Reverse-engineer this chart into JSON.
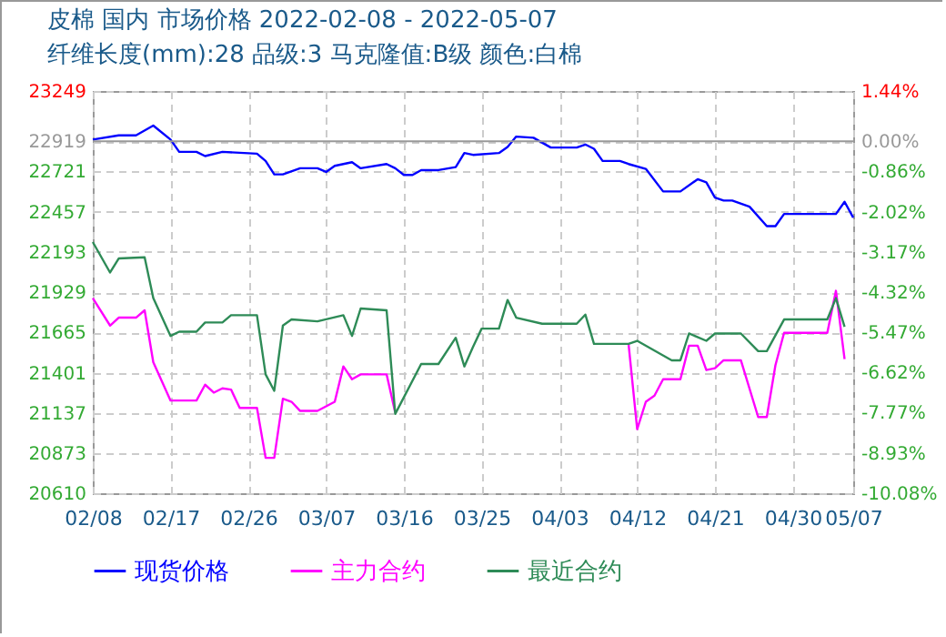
{
  "chart_data": {
    "type": "line",
    "title": "皮棉  国内  市场价格  2022-02-08 - 2022-05-07",
    "subtitle": "纤维长度(mm):28 品级:3 马克隆值:B级 颜色:白棉",
    "series": [
      {
        "name": "现货价格",
        "color": "#0000ff",
        "x": [
          "2022-02-08",
          "2022-02-11",
          "2022-02-13",
          "2022-02-15",
          "2022-02-17",
          "2022-02-18",
          "2022-02-20",
          "2022-02-21",
          "2022-02-23",
          "2022-02-27",
          "2022-02-28",
          "2022-03-01",
          "2022-03-02",
          "2022-03-04",
          "2022-03-06",
          "2022-03-07",
          "2022-03-08",
          "2022-03-10",
          "2022-03-11",
          "2022-03-14",
          "2022-03-15",
          "2022-03-16",
          "2022-03-17",
          "2022-03-18",
          "2022-03-20",
          "2022-03-22",
          "2022-03-23",
          "2022-03-24",
          "2022-03-27",
          "2022-03-28",
          "2022-03-29",
          "2022-03-31",
          "2022-04-02",
          "2022-04-05",
          "2022-04-06",
          "2022-04-07",
          "2022-04-08",
          "2022-04-10",
          "2022-04-11",
          "2022-04-13",
          "2022-04-15",
          "2022-04-17",
          "2022-04-19",
          "2022-04-20",
          "2022-04-21",
          "2022-04-22",
          "2022-04-23",
          "2022-04-25",
          "2022-04-27",
          "2022-04-28",
          "2022-04-29",
          "2022-05-05",
          "2022-05-06",
          "2022-05-07"
        ],
        "values": [
          22930,
          22958,
          22958,
          23022,
          22930,
          22850,
          22850,
          22822,
          22850,
          22838,
          22790,
          22702,
          22702,
          22742,
          22742,
          22718,
          22758,
          22782,
          22742,
          22770,
          22742,
          22698,
          22698,
          22730,
          22730,
          22750,
          22842,
          22830,
          22842,
          22882,
          22950,
          22942,
          22878,
          22878,
          22898,
          22870,
          22790,
          22790,
          22770,
          22738,
          22590,
          22590,
          22670,
          22650,
          22550,
          22530,
          22530,
          22490,
          22362,
          22362,
          22442,
          22442,
          22522,
          22418
        ]
      },
      {
        "name": "主力合约",
        "color": "#ff00ff",
        "x": [
          "2022-02-08",
          "2022-02-10",
          "2022-02-11",
          "2022-02-13",
          "2022-02-14",
          "2022-02-15",
          "2022-02-17",
          "2022-02-20",
          "2022-02-21",
          "2022-02-22",
          "2022-02-23",
          "2022-02-24",
          "2022-02-25",
          "2022-02-27",
          "2022-02-28",
          "2022-03-01",
          "2022-03-02",
          "2022-03-03",
          "2022-03-04",
          "2022-03-06",
          "2022-03-08",
          "2022-03-09",
          "2022-03-10",
          "2022-03-11",
          "2022-03-14",
          "2022-03-15",
          "2022-03-16",
          "2022-04-11",
          "2022-04-12",
          "2022-04-13",
          "2022-04-14",
          "2022-04-15",
          "2022-04-17",
          "2022-04-18",
          "2022-04-19",
          "2022-04-20",
          "2022-04-21",
          "2022-04-22",
          "2022-04-24",
          "2022-04-26",
          "2022-04-27",
          "2022-04-28",
          "2022-04-29",
          "2022-05-04",
          "2022-05-05",
          "2022-05-06"
        ],
        "values": [
          21890,
          21710,
          21762,
          21762,
          21810,
          21470,
          21218,
          21218,
          21322,
          21270,
          21298,
          21290,
          21170,
          21170,
          20842,
          20842,
          21230,
          21210,
          21150,
          21150,
          21210,
          21442,
          21358,
          21390,
          21390,
          21138,
          null,
          21590,
          21030,
          21210,
          21250,
          21358,
          21358,
          21578,
          21578,
          21418,
          21430,
          21482,
          21482,
          21110,
          21110,
          21450,
          21662,
          21662,
          21938,
          21490
        ]
      },
      {
        "name": "最近合约",
        "color": "#2e8b57",
        "x": [
          "2022-02-08",
          "2022-02-10",
          "2022-02-11",
          "2022-02-14",
          "2022-02-15",
          "2022-02-17",
          "2022-02-18",
          "2022-02-20",
          "2022-02-21",
          "2022-02-23",
          "2022-02-24",
          "2022-02-27",
          "2022-02-28",
          "2022-03-01",
          "2022-03-02",
          "2022-03-03",
          "2022-03-06",
          "2022-03-09",
          "2022-03-10",
          "2022-03-11",
          "2022-03-14",
          "2022-03-15",
          "2022-03-18",
          "2022-03-20",
          "2022-03-22",
          "2022-03-23",
          "2022-03-24",
          "2022-03-25",
          "2022-03-27",
          "2022-03-28",
          "2022-03-29",
          "2022-04-01",
          "2022-04-05",
          "2022-04-06",
          "2022-04-07",
          "2022-04-11",
          "2022-04-12",
          "2022-04-16",
          "2022-04-17",
          "2022-04-18",
          "2022-04-20",
          "2022-04-21",
          "2022-04-24",
          "2022-04-26",
          "2022-04-27",
          "2022-04-29",
          "2022-05-04",
          "2022-05-05",
          "2022-05-06"
        ],
        "values": [
          22258,
          22058,
          22150,
          22158,
          21890,
          21642,
          21670,
          21670,
          21730,
          21730,
          21778,
          21778,
          21390,
          21282,
          21710,
          21750,
          21738,
          21778,
          21642,
          21822,
          21810,
          21130,
          21458,
          21458,
          21630,
          21442,
          21570,
          21690,
          21690,
          21878,
          21762,
          21722,
          21722,
          21782,
          21590,
          21590,
          21610,
          21482,
          21482,
          21658,
          21610,
          21658,
          21658,
          21542,
          21542,
          21750,
          21750,
          21890,
          21702
        ]
      }
    ],
    "xlim": [
      "2022-02-08",
      "2022-05-07"
    ],
    "xticks": [
      {
        "value": "2022-02-08",
        "label": "02/08"
      },
      {
        "value": "2022-02-17",
        "label": "02/17"
      },
      {
        "value": "2022-02-26",
        "label": "02/26"
      },
      {
        "value": "2022-03-07",
        "label": "03/07"
      },
      {
        "value": "2022-03-16",
        "label": "03/16"
      },
      {
        "value": "2022-03-25",
        "label": "03/25"
      },
      {
        "value": "2022-04-03",
        "label": "04/03"
      },
      {
        "value": "2022-04-12",
        "label": "04/12"
      },
      {
        "value": "2022-04-21",
        "label": "04/21"
      },
      {
        "value": "2022-04-30",
        "label": "04/30"
      },
      {
        "value": "2022-05-07",
        "label": "05/07"
      }
    ],
    "ylim": [
      20610,
      23249
    ],
    "yticks": [
      20610,
      20873,
      21137,
      21401,
      21665,
      21929,
      22193,
      22457,
      22721,
      22919,
      23249
    ],
    "y2lim": [
      -10.08,
      1.44
    ],
    "y2ticks": [
      {
        "value": -10.08,
        "label": "-10.08%"
      },
      {
        "value": -8.93,
        "label": "-8.93%"
      },
      {
        "value": -7.77,
        "label": "-7.77%"
      },
      {
        "value": -6.62,
        "label": "-6.62%"
      },
      {
        "value": -5.47,
        "label": "-5.47%"
      },
      {
        "value": -4.32,
        "label": "-4.32%"
      },
      {
        "value": -3.17,
        "label": "-3.17%"
      },
      {
        "value": -2.02,
        "label": "-2.02%"
      },
      {
        "value": -0.86,
        "label": "-0.86%"
      },
      {
        "value": 0,
        "label": "0.00%"
      },
      {
        "value": 1.44,
        "label": "1.44%"
      }
    ],
    "ref_lines": [
      {
        "axis": "y",
        "value": 22919,
        "color": "#999999",
        "line_style": "solid"
      }
    ],
    "grid": true,
    "legend": "bottom",
    "marker": "none",
    "line_style": "solid"
  }
}
